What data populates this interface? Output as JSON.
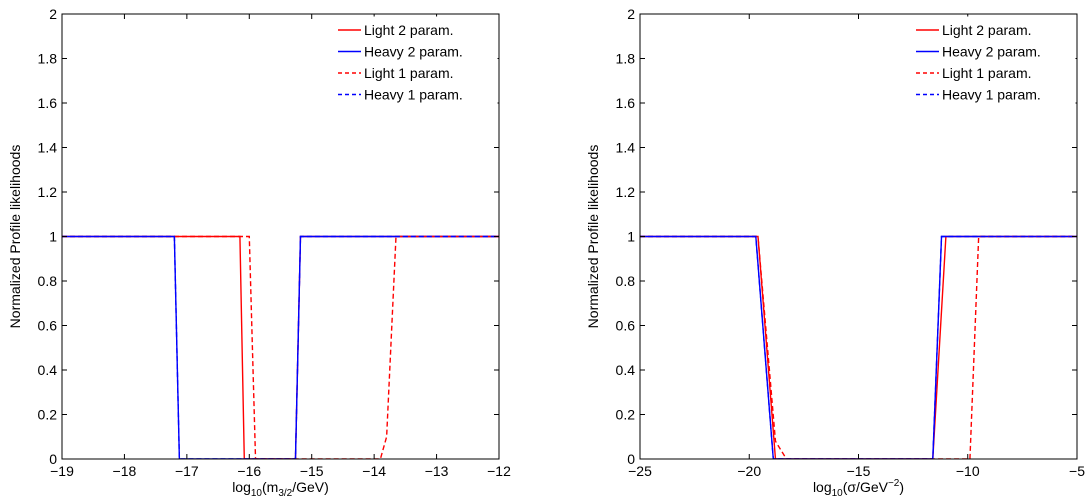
{
  "chart_data": [
    {
      "type": "line",
      "xlabel": "log10(m3/2/GeV)",
      "xlabel_parts": {
        "pre": "log",
        "sub1": "10",
        "mid": "(m",
        "sub2": "3/2",
        "post": "/GeV)"
      },
      "ylabel": "Normalized Profile likelihoods",
      "xlim": [
        -19,
        -12
      ],
      "ylim": [
        0,
        2
      ],
      "xticks": [
        -19,
        -18,
        -17,
        -16,
        -15,
        -14,
        -13,
        -12
      ],
      "xtick_labels": [
        "−19",
        "−18",
        "−17",
        "−16",
        "−15",
        "−14",
        "−13",
        "−12"
      ],
      "yticks": [
        0,
        0.2,
        0.4,
        0.6,
        0.8,
        1,
        1.2,
        1.4,
        1.6,
        1.8,
        2
      ],
      "ytick_labels": [
        "0",
        "0.2",
        "0.4",
        "0.6",
        "0.8",
        "1",
        "1.2",
        "1.4",
        "1.6",
        "1.8",
        "2"
      ],
      "grid": false,
      "legend_position": "top-right",
      "series": [
        {
          "name": "Light 2 param.",
          "color": "#ff0000",
          "dash": "solid",
          "x": [
            -19,
            -16.15,
            -16.08,
            -15.26,
            -15.18,
            -12
          ],
          "y": [
            1,
            1,
            0,
            0,
            1,
            1
          ]
        },
        {
          "name": "Heavy 2 param.",
          "color": "#0000ff",
          "dash": "solid",
          "x": [
            -19,
            -17.2,
            -17.12,
            -15.26,
            -15.18,
            -12
          ],
          "y": [
            1,
            1,
            0,
            0,
            1,
            1
          ]
        },
        {
          "name": "Light 1 param.",
          "color": "#ff0000",
          "dash": "dashed",
          "x": [
            -19,
            -16.0,
            -15.9,
            -13.9,
            -13.8,
            -13.65,
            -12
          ],
          "y": [
            1,
            1,
            0,
            0,
            0.1,
            1,
            1
          ]
        },
        {
          "name": "Heavy 1 param.",
          "color": "#0000ff",
          "dash": "dashed",
          "x": [
            -19,
            -17.2,
            -17.12,
            -15.26,
            -15.18,
            -12
          ],
          "y": [
            1,
            1,
            0,
            0,
            1,
            1
          ]
        }
      ]
    },
    {
      "type": "line",
      "xlabel": "log10(σ/GeV−2)",
      "xlabel_parts": {
        "pre": "log",
        "sub1": "10",
        "mid": "(σ/GeV",
        "sup": "−2",
        "post": ")"
      },
      "ylabel": "Normalized Profile likelihoods",
      "xlim": [
        -25,
        -5
      ],
      "ylim": [
        0,
        2
      ],
      "xticks": [
        -25,
        -20,
        -15,
        -10,
        -5
      ],
      "xtick_labels": [
        "−25",
        "−20",
        "−15",
        "−10",
        "−5"
      ],
      "yticks": [
        0,
        0.2,
        0.4,
        0.6,
        0.8,
        1,
        1.2,
        1.4,
        1.6,
        1.8,
        2
      ],
      "ytick_labels": [
        "0",
        "0.2",
        "0.4",
        "0.6",
        "0.8",
        "1",
        "1.2",
        "1.4",
        "1.6",
        "1.8",
        "2"
      ],
      "grid": false,
      "legend_position": "top-right",
      "series": [
        {
          "name": "Light 2 param.",
          "color": "#ff0000",
          "dash": "solid",
          "x": [
            -25,
            -19.6,
            -18.8,
            -11.6,
            -11.0,
            -5
          ],
          "y": [
            1,
            1,
            0,
            0,
            1,
            1
          ]
        },
        {
          "name": "Heavy 2 param.",
          "color": "#0000ff",
          "dash": "solid",
          "x": [
            -25,
            -19.7,
            -18.9,
            -11.6,
            -11.2,
            -5
          ],
          "y": [
            1,
            1,
            0,
            0,
            1,
            1
          ]
        },
        {
          "name": "Light 1 param.",
          "color": "#ff0000",
          "dash": "dashed",
          "x": [
            -25,
            -19.6,
            -18.8,
            -18.3,
            -9.9,
            -9.5,
            -5
          ],
          "y": [
            1,
            1,
            0.08,
            0,
            0,
            1,
            1
          ]
        },
        {
          "name": "Heavy 1 param.",
          "color": "#0000ff",
          "dash": "dashed",
          "x": [
            -25,
            -19.7,
            -18.9,
            -11.6,
            -11.2,
            -5
          ],
          "y": [
            1,
            1,
            0,
            0,
            1,
            1
          ]
        }
      ]
    }
  ]
}
